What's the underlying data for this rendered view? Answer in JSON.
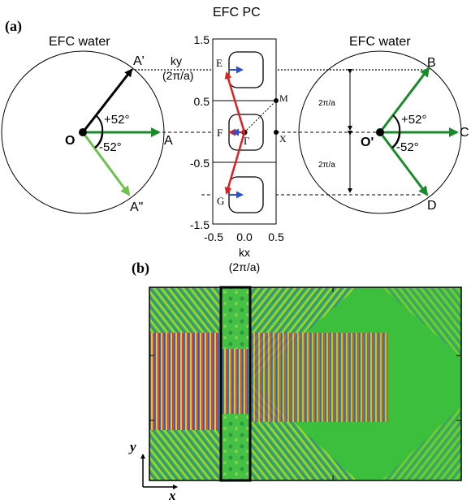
{
  "panel_a": {
    "label": "(a)",
    "left": {
      "title": "EFC water",
      "origin": "O",
      "points": {
        "a_prime": "A'",
        "a": "A",
        "a_double_prime": "A\""
      },
      "angle_plus": "+52°",
      "angle_minus": "-52°"
    },
    "center": {
      "title": "EFC PC",
      "ky_label": "ky",
      "ky_unit": "(2π/a)",
      "kx_label": "kx",
      "kx_unit": "(2π/a)",
      "y_ticks": [
        "1.5",
        "0.5",
        "-0.5",
        "-1.5"
      ],
      "x_ticks": [
        "-0.5",
        "0.0",
        "0.5"
      ],
      "points": {
        "e": "E",
        "f": "F",
        "g": "G",
        "gamma": "Γ",
        "m": "M",
        "x": "X"
      }
    },
    "right": {
      "title": "EFC water",
      "origin": "O'",
      "points": {
        "b": "B",
        "c": "C",
        "d": "D"
      },
      "angle_plus": "+52°",
      "angle_minus": "-52°",
      "spacing_upper": "2π/a",
      "spacing_lower": "2π/a"
    }
  },
  "panel_b": {
    "label": "(b)",
    "axis_y": "y",
    "axis_x": "x"
  },
  "colors": {
    "black_arrow": "#000000",
    "green_dark": "#1a8a2a",
    "green_light": "#6cc24a",
    "red": "#e02020",
    "blue": "#2a4fd0",
    "field_green": "#3cbf3c"
  }
}
